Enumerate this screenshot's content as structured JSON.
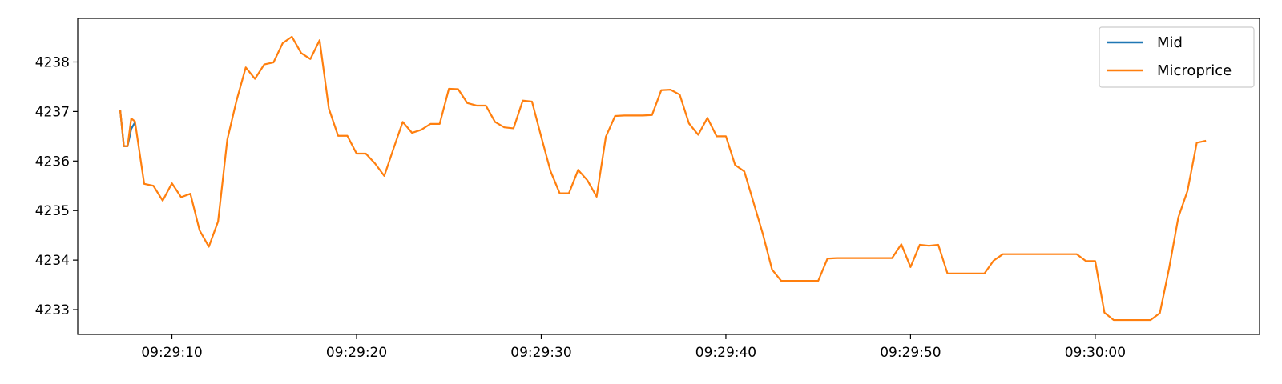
{
  "chart_data": {
    "type": "line",
    "title": "",
    "xlabel": "",
    "ylabel": "",
    "x_ticks": [
      "09:29:10",
      "09:29:20",
      "09:29:30",
      "09:29:40",
      "09:29:50",
      "09:30:00"
    ],
    "x_tick_values": [
      "09:29:10",
      "09:29:20",
      "09:29:30",
      "09:29:40",
      "09:29:50",
      "09:30:00"
    ],
    "xlim": [
      "09:29:04.9",
      "09:30:08.9"
    ],
    "y_ticks": [
      4233,
      4234,
      4235,
      4236,
      4237,
      4238
    ],
    "ylim": [
      4232.5,
      4238.88
    ],
    "grid": false,
    "legend_position": "top-right",
    "series": [
      {
        "name": "Mid",
        "color": "#1f77b4",
        "x": [
          "09:29:07.2",
          "09:29:07.4",
          "09:29:07.6",
          "09:29:07.8",
          "09:29:08.0"
        ],
        "y": [
          4237.03,
          4236.3,
          4236.3,
          4236.65,
          4236.78
        ]
      },
      {
        "name": "Microprice",
        "color": "#ff7f0e",
        "x": [
          "09:29:07.2",
          "09:29:07.4",
          "09:29:07.6",
          "09:29:07.8",
          "09:29:08.0",
          "09:29:08.5",
          "09:29:09.0",
          "09:29:09.5",
          "09:29:10.0",
          "09:29:10.5",
          "09:29:11.0",
          "09:29:11.5",
          "09:29:12.0",
          "09:29:12.5",
          "09:29:13.0",
          "09:29:13.5",
          "09:29:14.0",
          "09:29:14.5",
          "09:29:15.0",
          "09:29:15.5",
          "09:29:16.0",
          "09:29:16.5",
          "09:29:17.0",
          "09:29:17.5",
          "09:29:18.0",
          "09:29:18.5",
          "09:29:19.0",
          "09:29:19.5",
          "09:29:20.0",
          "09:29:20.5",
          "09:29:21.0",
          "09:29:21.5",
          "09:29:22.0",
          "09:29:22.5",
          "09:29:23.0",
          "09:29:23.5",
          "09:29:24.0",
          "09:29:24.5",
          "09:29:25.0",
          "09:29:25.5",
          "09:29:26.0",
          "09:29:26.5",
          "09:29:27.0",
          "09:29:27.5",
          "09:29:28.0",
          "09:29:28.5",
          "09:29:29.0",
          "09:29:29.5",
          "09:29:30.0",
          "09:29:30.5",
          "09:29:31.0",
          "09:29:31.5",
          "09:29:32.0",
          "09:29:32.5",
          "09:29:33.0",
          "09:29:33.5",
          "09:29:34.0",
          "09:29:34.5",
          "09:29:35.0",
          "09:29:35.5",
          "09:29:36.0",
          "09:29:36.5",
          "09:29:37.0",
          "09:29:37.5",
          "09:29:38.0",
          "09:29:38.5",
          "09:29:39.0",
          "09:29:39.5",
          "09:29:40.0",
          "09:29:40.5",
          "09:29:41.0",
          "09:29:41.5",
          "09:29:42.0",
          "09:29:42.5",
          "09:29:43.0",
          "09:29:43.5",
          "09:29:44.0",
          "09:29:44.5",
          "09:29:45.0",
          "09:29:45.5",
          "09:29:46.0",
          "09:29:46.5",
          "09:29:47.0",
          "09:29:47.5",
          "09:29:48.0",
          "09:29:48.5",
          "09:29:49.0",
          "09:29:49.5",
          "09:29:50.0",
          "09:29:50.5",
          "09:29:51.0",
          "09:29:51.5",
          "09:29:52.0",
          "09:29:52.5",
          "09:29:53.0",
          "09:29:53.5",
          "09:29:54.0",
          "09:29:54.5",
          "09:29:55.0",
          "09:29:55.5",
          "09:29:56.0",
          "09:29:56.5",
          "09:29:57.0",
          "09:29:57.5",
          "09:29:58.0",
          "09:29:58.5",
          "09:29:59.0",
          "09:29:59.5",
          "09:30:00.0",
          "09:30:00.5",
          "09:30:01.0",
          "09:30:01.5",
          "09:30:02.0",
          "09:30:02.5",
          "09:30:03.0",
          "09:30:03.5",
          "09:30:04.0",
          "09:30:04.5",
          "09:30:05.0",
          "09:30:05.5",
          "09:30:06.0"
        ],
        "y": [
          4237.03,
          4236.3,
          4236.3,
          4236.86,
          4236.8,
          4235.54,
          4235.5,
          4235.2,
          4235.55,
          4235.27,
          4235.34,
          4234.6,
          4234.27,
          4234.78,
          4236.43,
          4237.22,
          4237.89,
          4237.66,
          4237.95,
          4237.99,
          4238.38,
          4238.51,
          4238.18,
          4238.06,
          4238.44,
          4237.06,
          4236.51,
          4236.51,
          4236.15,
          4236.15,
          4235.95,
          4235.7,
          4236.25,
          4236.79,
          4236.57,
          4236.63,
          4236.75,
          4236.75,
          4237.46,
          4237.45,
          4237.17,
          4237.12,
          4237.12,
          4236.79,
          4236.68,
          4236.66,
          4237.22,
          4237.2,
          4236.49,
          4235.8,
          4235.35,
          4235.35,
          4235.82,
          4235.61,
          4235.28,
          4236.49,
          4236.91,
          4236.92,
          4236.92,
          4236.92,
          4236.93,
          4237.43,
          4237.44,
          4237.34,
          4236.76,
          4236.53,
          4236.87,
          4236.5,
          4236.5,
          4235.92,
          4235.79,
          4235.16,
          4234.53,
          4233.81,
          4233.58,
          4233.58,
          4233.58,
          4233.58,
          4233.58,
          4234.03,
          4234.04,
          4234.04,
          4234.04,
          4234.04,
          4234.04,
          4234.04,
          4234.04,
          4234.32,
          4233.86,
          4234.31,
          4234.29,
          4234.31,
          4233.73,
          4233.73,
          4233.73,
          4233.73,
          4233.73,
          4233.99,
          4234.12,
          4234.12,
          4234.12,
          4234.12,
          4234.12,
          4234.12,
          4234.12,
          4234.12,
          4234.12,
          4233.98,
          4233.98,
          4232.94,
          4232.79,
          4232.79,
          4232.79,
          4232.79,
          4232.79,
          4232.93,
          4233.83,
          4234.86,
          4235.4,
          4236.37,
          4236.41
        ]
      }
    ]
  }
}
